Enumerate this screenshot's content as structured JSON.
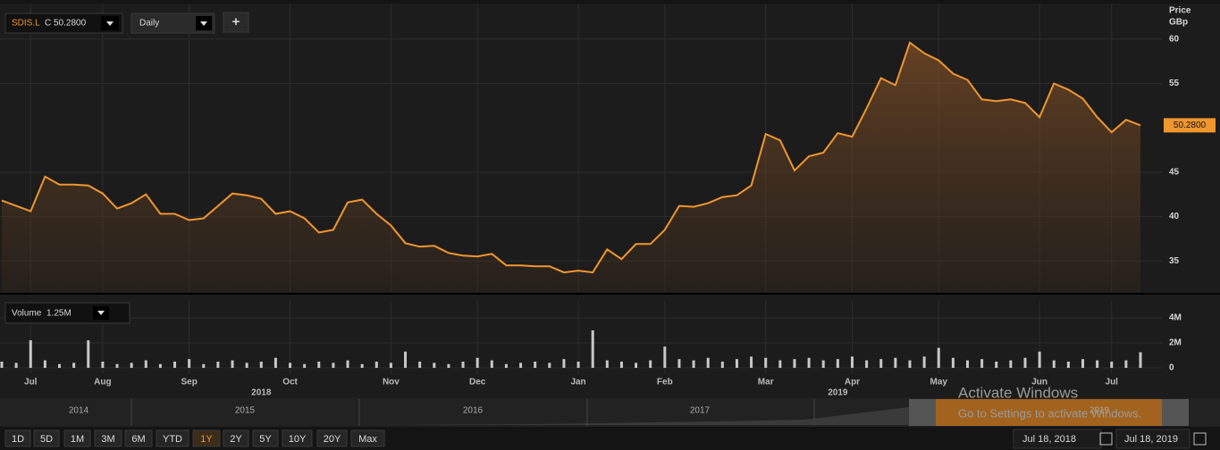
{
  "chart_data": [
    {
      "type": "line",
      "color": "#f0962e",
      "y_label": [
        "Price",
        "GBp"
      ],
      "last_label": "50.2800",
      "year_labels": [
        "2018",
        "2019"
      ],
      "categories": [
        null,
        null,
        "Jul",
        null,
        null,
        null,
        null,
        "Aug",
        null,
        null,
        null,
        null,
        null,
        "Sep",
        null,
        null,
        null,
        null,
        null,
        null,
        "Oct",
        null,
        null,
        null,
        null,
        null,
        null,
        "Nov",
        null,
        null,
        null,
        null,
        null,
        "Dec",
        null,
        null,
        null,
        null,
        null,
        null,
        "Jan",
        null,
        null,
        null,
        null,
        null,
        "Feb",
        null,
        null,
        null,
        null,
        null,
        null,
        "Mar",
        null,
        null,
        null,
        null,
        null,
        "Apr",
        null,
        null,
        null,
        null,
        null,
        "May",
        null,
        null,
        null,
        null,
        null,
        null,
        "Jun",
        null,
        null,
        null,
        null,
        "Jul",
        null,
        null
      ],
      "values": [
        41.8,
        41.2,
        40.6,
        44.5,
        43.6,
        43.6,
        43.5,
        42.6,
        40.9,
        41.5,
        42.5,
        40.3,
        40.3,
        39.6,
        39.8,
        41.2,
        42.6,
        42.4,
        42.0,
        40.3,
        40.6,
        39.8,
        38.2,
        38.5,
        41.6,
        41.9,
        40.3,
        39.0,
        37.0,
        36.6,
        36.7,
        35.9,
        35.6,
        35.5,
        35.8,
        34.5,
        34.5,
        34.4,
        34.4,
        33.7,
        33.9,
        33.7,
        36.3,
        35.2,
        36.9,
        36.9,
        38.5,
        41.2,
        41.1,
        41.5,
        42.2,
        42.4,
        43.5,
        49.3,
        48.6,
        45.2,
        46.8,
        47.2,
        49.4,
        49.0,
        52.2,
        55.6,
        54.8,
        59.6,
        58.4,
        57.6,
        56.1,
        55.4,
        53.2,
        53.0,
        53.2,
        52.8,
        51.2,
        55.0,
        54.3,
        53.3,
        51.2,
        49.5,
        50.9,
        50.28
      ],
      "ylim": [
        31.5,
        63.7
      ],
      "yticks": [
        35,
        40,
        45,
        55,
        60
      ],
      "grid": true
    },
    {
      "type": "bar",
      "color": "#c8c8c8",
      "name": "Volume",
      "current_label": "1.25M",
      "values": [
        0.5,
        0.4,
        2.2,
        0.6,
        0.3,
        0.4,
        2.2,
        0.5,
        0.3,
        0.4,
        0.6,
        0.3,
        0.5,
        0.7,
        0.3,
        0.5,
        0.6,
        0.4,
        0.5,
        0.8,
        0.4,
        0.3,
        0.5,
        0.4,
        0.6,
        0.3,
        0.5,
        0.4,
        1.3,
        0.5,
        0.4,
        0.3,
        0.5,
        0.8,
        0.6,
        0.3,
        0.4,
        0.5,
        0.4,
        0.7,
        0.5,
        3.0,
        0.6,
        0.5,
        0.4,
        0.6,
        1.7,
        0.7,
        0.6,
        0.8,
        0.5,
        0.7,
        0.9,
        0.8,
        0.6,
        0.7,
        0.8,
        0.6,
        0.7,
        0.9,
        0.6,
        0.7,
        0.8,
        0.6,
        0.9,
        1.6,
        0.8,
        0.6,
        0.7,
        0.5,
        0.6,
        0.8,
        1.3,
        0.6,
        0.5,
        0.7,
        0.6,
        0.5,
        0.6,
        1.25
      ],
      "ylim": [
        -0.43,
        5.14
      ],
      "yticks": [
        0,
        {
          "value": 2,
          "label": "2M"
        },
        {
          "value": 4,
          "label": "4M"
        }
      ],
      "grid": true
    }
  ],
  "toolbar": {
    "symbol": "SDIS.L",
    "close": "C 50.2800",
    "interval": "Daily",
    "add": "+"
  },
  "navigator": {
    "years": [
      "2014",
      "2015",
      "2016",
      "2017",
      "2019"
    ]
  },
  "range_buttons": [
    "1D",
    "5D",
    "1M",
    "3M",
    "6M",
    "YTD",
    "1Y",
    "2Y",
    "5Y",
    "10Y",
    "20Y",
    "Max"
  ],
  "active_range": "1Y",
  "date_range": {
    "start": "Jul 18, 2018",
    "end": "Jul 18, 2019"
  },
  "watermark": {
    "title": "Activate Windows",
    "subtitle": "Go to Settings to activate Windows."
  }
}
